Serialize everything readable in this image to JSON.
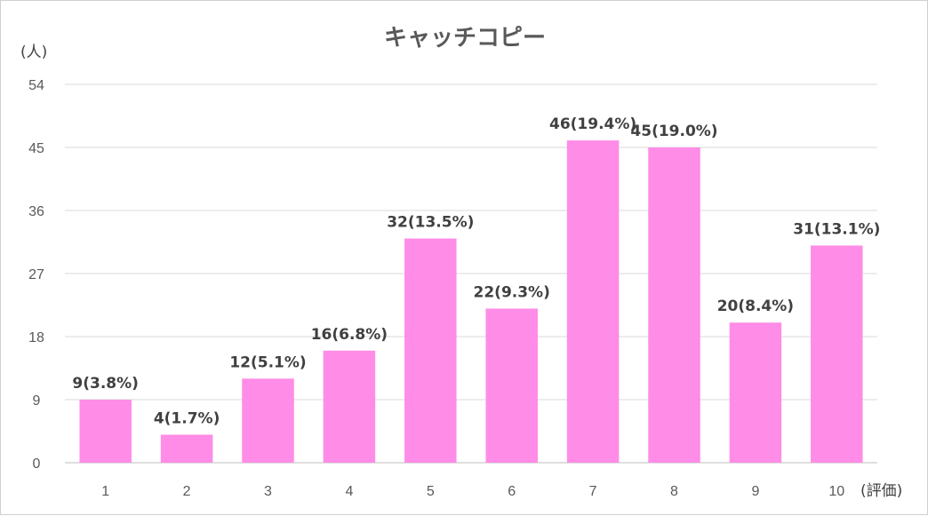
{
  "chart_data": {
    "type": "bar",
    "title": "キャッチコピー",
    "ylabel": "(人)",
    "xlabel": "(評価)",
    "categories": [
      "1",
      "2",
      "3",
      "4",
      "5",
      "6",
      "7",
      "8",
      "9",
      "10"
    ],
    "values": [
      9,
      4,
      12,
      16,
      32,
      22,
      46,
      45,
      20,
      31
    ],
    "data_labels": [
      "9(3.8%)",
      "4(1.7%)",
      "12(5.1%)",
      "16(6.8%)",
      "32(13.5%)",
      "22(9.3%)",
      "46(19.4%)",
      "45(19.0%)",
      "20(8.4%)",
      "31(13.1%)"
    ],
    "ylim": [
      0,
      54
    ],
    "yticks": [
      "0",
      "9",
      "18",
      "27",
      "36",
      "45",
      "54"
    ],
    "grid": true,
    "legend": "none",
    "bar_color": "#ff8ce6"
  }
}
